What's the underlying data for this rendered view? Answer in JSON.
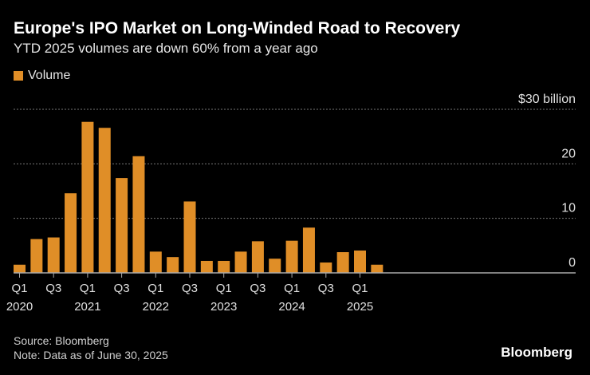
{
  "title": "Europe's IPO Market on Long-Winded Road to Recovery",
  "subtitle": "YTD 2025 volumes are down 60% from a year ago",
  "source": "Source: Bloomberg",
  "note": "Note: Data as of June 30, 2025",
  "brand": "Bloomberg",
  "colors": {
    "bar": "#e08e27",
    "background": "#000000",
    "grid": "#777777"
  },
  "chart_data": {
    "type": "bar",
    "legend": [
      "Volume"
    ],
    "legend_position": "top-left",
    "grid": true,
    "ylim": [
      0,
      30
    ],
    "y_ticks": [
      {
        "value": 30,
        "label": "$30 billion"
      },
      {
        "value": 20,
        "label": "20"
      },
      {
        "value": 10,
        "label": "10"
      },
      {
        "value": 0,
        "label": "0"
      }
    ],
    "categories": [
      "Q1 2020",
      "Q2 2020",
      "Q3 2020",
      "Q4 2020",
      "Q1 2021",
      "Q2 2021",
      "Q3 2021",
      "Q4 2021",
      "Q1 2022",
      "Q2 2022",
      "Q3 2022",
      "Q4 2022",
      "Q1 2023",
      "Q2 2023",
      "Q3 2023",
      "Q4 2023",
      "Q1 2024",
      "Q2 2024",
      "Q3 2024",
      "Q4 2024",
      "Q1 2025",
      "Q2 2025"
    ],
    "x_tick_labels": [
      {
        "index": 0,
        "line1": "Q1",
        "line2": "2020"
      },
      {
        "index": 2,
        "line1": "Q3",
        "line2": ""
      },
      {
        "index": 4,
        "line1": "Q1",
        "line2": "2021"
      },
      {
        "index": 6,
        "line1": "Q3",
        "line2": ""
      },
      {
        "index": 8,
        "line1": "Q1",
        "line2": "2022"
      },
      {
        "index": 10,
        "line1": "Q3",
        "line2": ""
      },
      {
        "index": 12,
        "line1": "Q1",
        "line2": "2023"
      },
      {
        "index": 14,
        "line1": "Q3",
        "line2": ""
      },
      {
        "index": 16,
        "line1": "Q1",
        "line2": "2024"
      },
      {
        "index": 18,
        "line1": "Q3",
        "line2": ""
      },
      {
        "index": 20,
        "line1": "Q1",
        "line2": "2025"
      }
    ],
    "series": [
      {
        "name": "Volume",
        "values": [
          1.5,
          6.2,
          6.5,
          14.6,
          27.7,
          26.6,
          17.4,
          21.4,
          3.9,
          2.9,
          13.1,
          2.2,
          2.2,
          3.9,
          5.8,
          2.6,
          5.9,
          8.3,
          1.9,
          3.8,
          4.1,
          1.5
        ]
      }
    ]
  }
}
